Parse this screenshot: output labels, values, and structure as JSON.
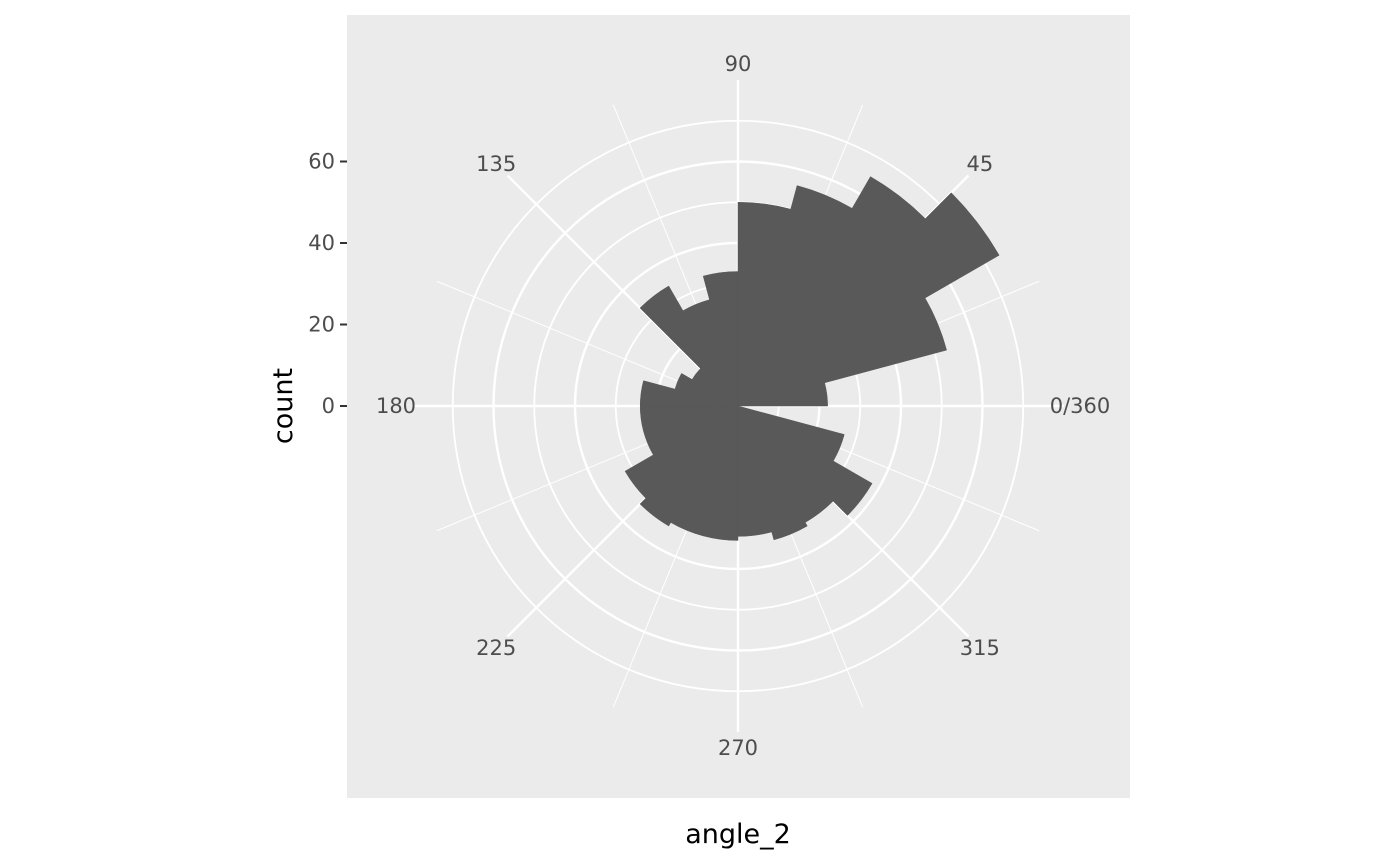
{
  "chart_data": {
    "type": "bar",
    "coord": "polar",
    "xlabel": "angle_2",
    "ylabel": "count",
    "theta_range": [
      0,
      360
    ],
    "theta_breaks": [
      0,
      45,
      90,
      135,
      180,
      225,
      270,
      315
    ],
    "theta_tick_labels": [
      "0/360",
      "45",
      "90",
      "135",
      "180",
      "225",
      "270",
      "315"
    ],
    "r_breaks": [
      0,
      20,
      40,
      60
    ],
    "r_tick_labels": [
      "0",
      "20",
      "40",
      "60"
    ],
    "ylim": [
      0,
      80
    ],
    "bin_width": 15,
    "bins": [
      {
        "start": 0,
        "end": 15,
        "count": 22
      },
      {
        "start": 15,
        "end": 30,
        "count": 53
      },
      {
        "start": 30,
        "end": 45,
        "count": 74
      },
      {
        "start": 45,
        "end": 60,
        "count": 65
      },
      {
        "start": 60,
        "end": 75,
        "count": 56
      },
      {
        "start": 75,
        "end": 90,
        "count": 50
      },
      {
        "start": 90,
        "end": 105,
        "count": 33
      },
      {
        "start": 105,
        "end": 120,
        "count": 27
      },
      {
        "start": 120,
        "end": 135,
        "count": 34
      },
      {
        "start": 135,
        "end": 150,
        "count": 13
      },
      {
        "start": 150,
        "end": 165,
        "count": 16
      },
      {
        "start": 165,
        "end": 180,
        "count": 24
      },
      {
        "start": 180,
        "end": 195,
        "count": 24
      },
      {
        "start": 195,
        "end": 210,
        "count": 24
      },
      {
        "start": 210,
        "end": 225,
        "count": 32
      },
      {
        "start": 225,
        "end": 240,
        "count": 34
      },
      {
        "start": 240,
        "end": 255,
        "count": 33
      },
      {
        "start": 255,
        "end": 270,
        "count": 33
      },
      {
        "start": 270,
        "end": 285,
        "count": 32
      },
      {
        "start": 285,
        "end": 300,
        "count": 34
      },
      {
        "start": 300,
        "end": 315,
        "count": 33
      },
      {
        "start": 315,
        "end": 330,
        "count": 38
      },
      {
        "start": 330,
        "end": 345,
        "count": 27
      },
      {
        "start": 345,
        "end": 360,
        "count": 0
      }
    ],
    "colors": {
      "panel_background": "#ebebeb",
      "grid": "#ffffff",
      "bar_fill": "#595959",
      "tick_text": "#4d4d4d",
      "title_text": "#000000"
    },
    "grid": true,
    "legend": "none"
  }
}
